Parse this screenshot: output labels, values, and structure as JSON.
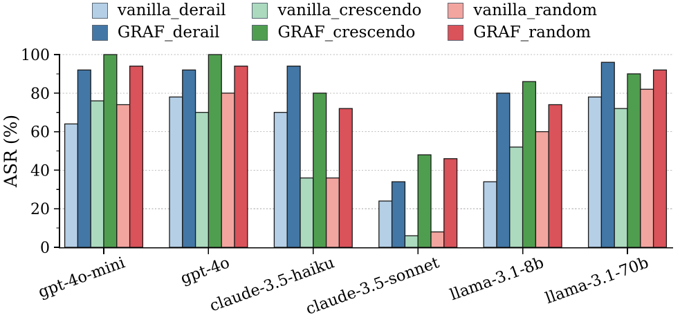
{
  "chart_data": {
    "type": "bar",
    "title": "",
    "xlabel": "",
    "ylabel": "ASR (%)",
    "ylim": [
      0,
      100
    ],
    "yticks": [
      0,
      20,
      40,
      60,
      80,
      100
    ],
    "grid": "horizontal dashed gridlines at major ticks, minor ticks every 10",
    "legend_position": "top-center, 2 rows x 3 columns",
    "categories": [
      "gpt-4o-mini",
      "gpt-4o",
      "claude-3.5-haiku",
      "claude-3.5-sonnet",
      "llama-3.1-8b",
      "llama-3.1-70b"
    ],
    "series": [
      {
        "name": "vanilla_derail",
        "color": "#b4cfe6",
        "values": [
          64,
          78,
          70,
          24,
          34,
          78
        ]
      },
      {
        "name": "GRAF_derail",
        "color": "#4377a6",
        "values": [
          92,
          92,
          94,
          34,
          80,
          96
        ]
      },
      {
        "name": "vanilla_crescendo",
        "color": "#abdabf",
        "values": [
          76,
          70,
          36,
          6,
          52,
          72
        ]
      },
      {
        "name": "GRAF_crescendo",
        "color": "#4f9e4f",
        "values": [
          100,
          100,
          80,
          48,
          86,
          90
        ]
      },
      {
        "name": "vanilla_random",
        "color": "#f2a59f",
        "values": [
          74,
          80,
          36,
          8,
          60,
          82
        ]
      },
      {
        "name": "GRAF_random",
        "color": "#da525a",
        "values": [
          94,
          94,
          72,
          46,
          74,
          92
        ]
      }
    ],
    "legend_rows": [
      [
        "vanilla_derail",
        "vanilla_crescendo",
        "vanilla_random"
      ],
      [
        "GRAF_derail",
        "GRAF_crescendo",
        "GRAF_random"
      ]
    ]
  },
  "colors": {
    "background": "#ffffff",
    "bar_edge": "#1a1a1a",
    "grid": "#c2c2c2",
    "axis": "#000000",
    "text": "#000000",
    "legend_swatch_edge": "#5a6672"
  }
}
